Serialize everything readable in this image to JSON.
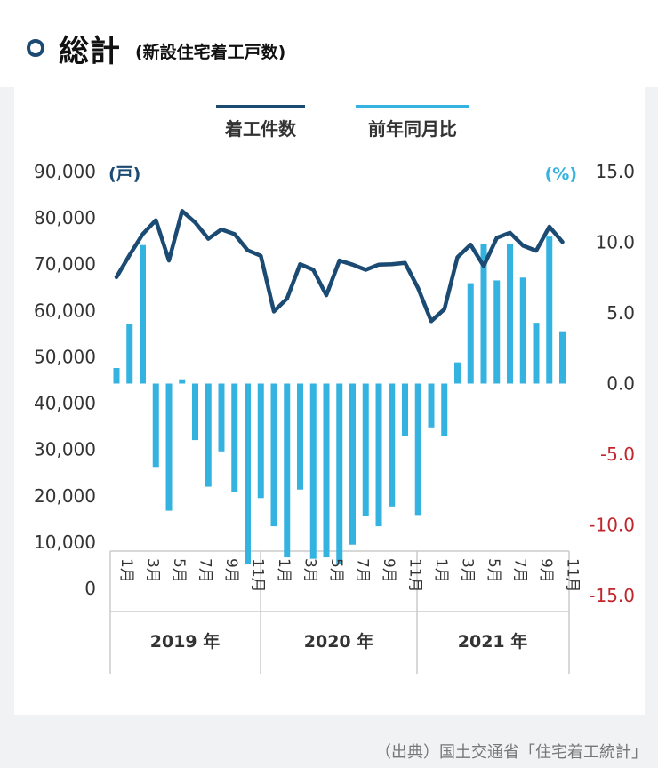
{
  "header": {
    "title": "総計",
    "subtitle": "(新設住宅着工戸数)"
  },
  "source": "（出典）国土交通省「住宅着工統計」",
  "colors": {
    "line": "#1b4a72",
    "bar": "#35b3e0",
    "left_axis_text": "#333333",
    "right_axis_positive": "#333333",
    "right_axis_negative": "#c0272d",
    "unit_left": "#1b4a72",
    "unit_right": "#35b3e0"
  },
  "chart_data": {
    "type": "bar+line",
    "legend": [
      "着工件数",
      "前年同月比"
    ],
    "left_unit": "(戸)",
    "right_unit": "(%)",
    "left_ticks": [
      "90,000",
      "80,000",
      "70,000",
      "60,000",
      "50,000",
      "40,000",
      "30,000",
      "20,000",
      "10,000",
      "0"
    ],
    "right_ticks": [
      "15.0",
      "10.0",
      "5.0",
      "0.0",
      "-5.0",
      "-10.0",
      "-15.0"
    ],
    "left_ylim": [
      0,
      90000
    ],
    "right_ylim": [
      -15,
      15
    ],
    "month_labels": [
      "1月",
      "",
      "3月",
      "",
      "5月",
      "",
      "7月",
      "",
      "9月",
      "",
      "11月",
      ""
    ],
    "years": [
      "2019 年",
      "2020 年",
      "2021 年"
    ],
    "series": [
      {
        "name": "着工件数",
        "axis": "left",
        "values": [
          67200,
          72000,
          76500,
          79500,
          70800,
          81500,
          79000,
          75500,
          77500,
          76500,
          73000,
          71800,
          59800,
          62600,
          70000,
          68800,
          63300,
          70800,
          69900,
          68800,
          69900,
          70000,
          70300,
          64800,
          57700,
          60300,
          71500,
          74200,
          69600,
          75700,
          76800,
          74000,
          72900,
          78100,
          74800
        ]
      },
      {
        "name": "前年同月比",
        "axis": "right",
        "values": [
          1.1,
          4.2,
          9.8,
          -5.9,
          -9.0,
          0.3,
          -4.0,
          -7.3,
          -4.8,
          -7.7,
          -12.8,
          -8.1,
          -10.1,
          -12.3,
          -7.5,
          -12.4,
          -12.3,
          -12.8,
          -11.4,
          -9.4,
          -10.1,
          -8.7,
          -3.7,
          -9.3,
          -3.1,
          -3.7,
          1.5,
          7.1,
          9.9,
          7.3,
          9.9,
          7.5,
          4.3,
          10.4,
          3.7
        ]
      }
    ]
  }
}
